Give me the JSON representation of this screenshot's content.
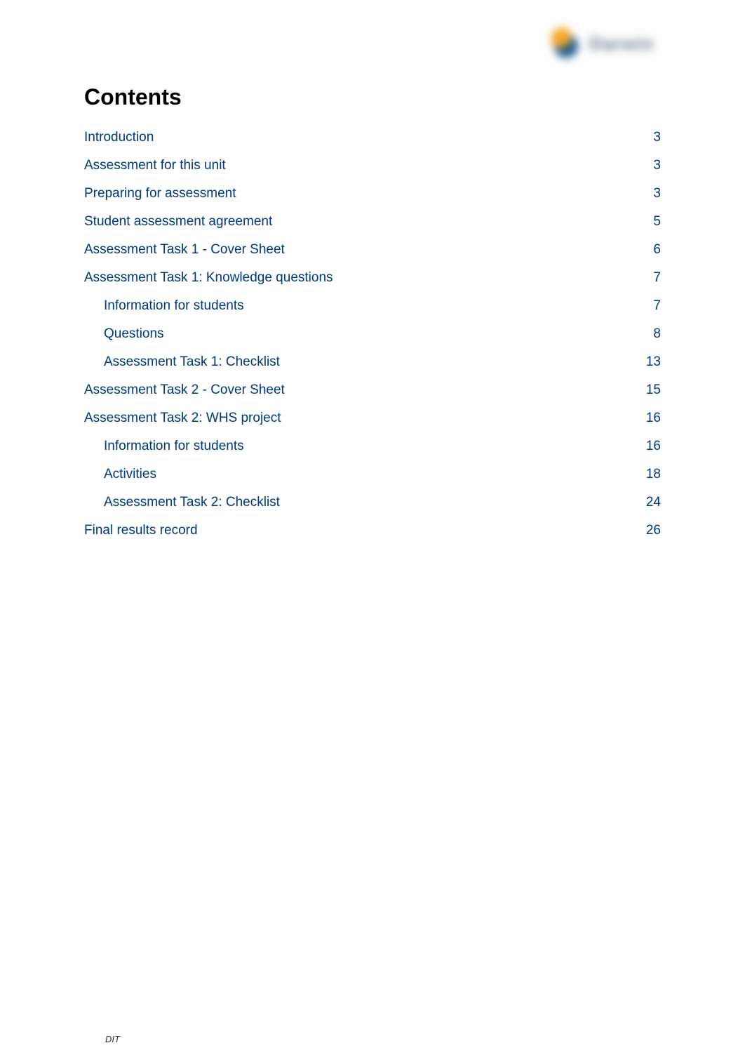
{
  "logo": {
    "text": "Darwin"
  },
  "title": "Contents",
  "toc": {
    "items": [
      {
        "label": "Introduction",
        "page": "3",
        "indent": 0
      },
      {
        "label": "Assessment for this unit",
        "page": "3",
        "indent": 0
      },
      {
        "label": "Preparing for assessment",
        "page": "3",
        "indent": 0
      },
      {
        "label": "Student assessment agreement",
        "page": "5",
        "indent": 0
      },
      {
        "label": "Assessment Task 1 - Cover Sheet",
        "page": "6",
        "indent": 0
      },
      {
        "label": "Assessment Task 1: Knowledge questions",
        "page": "7",
        "indent": 0
      },
      {
        "label": "Information for students",
        "page": "7",
        "indent": 1
      },
      {
        "label": "Questions",
        "page": "8",
        "indent": 1
      },
      {
        "label": "Assessment Task 1: Checklist",
        "page": "13",
        "indent": 1
      },
      {
        "label": "Assessment Task 2 - Cover Sheet",
        "page": "15",
        "indent": 0
      },
      {
        "label": "Assessment Task 2: WHS project",
        "page": "16",
        "indent": 0
      },
      {
        "label": "Information for students",
        "page": "16",
        "indent": 1
      },
      {
        "label": "Activities",
        "page": "18",
        "indent": 1
      },
      {
        "label": "Assessment Task 2: Checklist",
        "page": "24",
        "indent": 1
      },
      {
        "label": "Final results record",
        "page": "26",
        "indent": 0
      }
    ]
  },
  "footer": "DIT",
  "colors": {
    "link": "#003a7e",
    "text": "#000000",
    "background": "#ffffff"
  },
  "typography": {
    "title_fontsize": 32,
    "title_weight": "bold",
    "body_fontsize": 19,
    "footer_fontsize": 13
  }
}
